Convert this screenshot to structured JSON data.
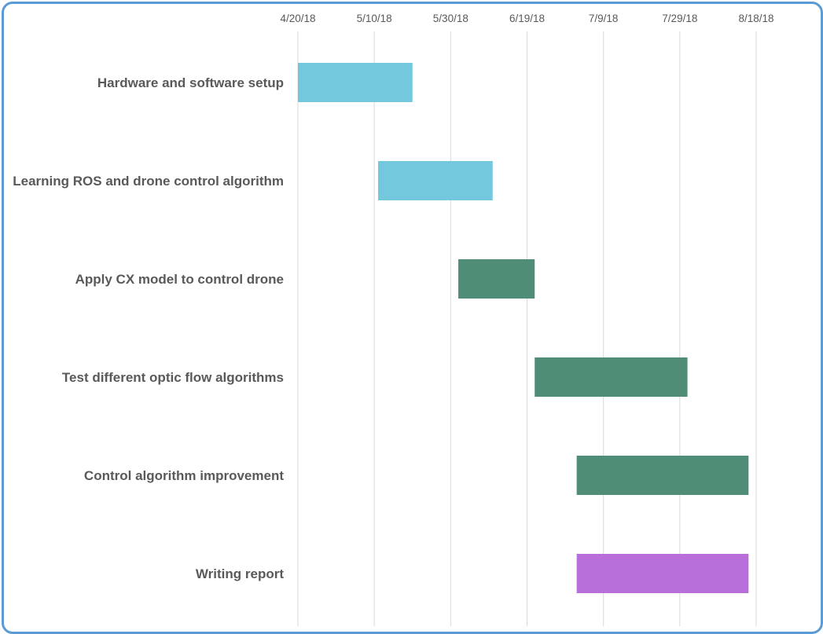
{
  "chart_data": {
    "type": "bar",
    "orientation": "horizontal",
    "title": "",
    "xlabel": "",
    "ylabel": "",
    "x_axis_position": "top",
    "xlim": [
      "2018-04-20",
      "2018-08-18"
    ],
    "x_ticks": [
      "4/20/18",
      "5/10/18",
      "5/30/18",
      "6/19/18",
      "7/9/18",
      "7/29/18",
      "8/18/18"
    ],
    "grid": true,
    "legend": "none",
    "tasks": [
      {
        "label": "Hardware and software setup",
        "start": "2018-04-20",
        "end": "2018-05-20",
        "color": "#74c8de"
      },
      {
        "label": "Learning ROS and drone control algorithm",
        "start": "2018-05-11",
        "end": "2018-06-10",
        "color": "#74c8de"
      },
      {
        "label": "Apply CX model to control drone",
        "start": "2018-06-01",
        "end": "2018-06-21",
        "color": "#508d76"
      },
      {
        "label": "Test different optic flow algorithms",
        "start": "2018-06-21",
        "end": "2018-07-31",
        "color": "#508d76"
      },
      {
        "label": "Control algorithm improvement",
        "start": "2018-07-02",
        "end": "2018-08-16",
        "color": "#508d76"
      },
      {
        "label": "Writing report",
        "start": "2018-07-02",
        "end": "2018-08-16",
        "color": "#b86fd9"
      }
    ]
  }
}
